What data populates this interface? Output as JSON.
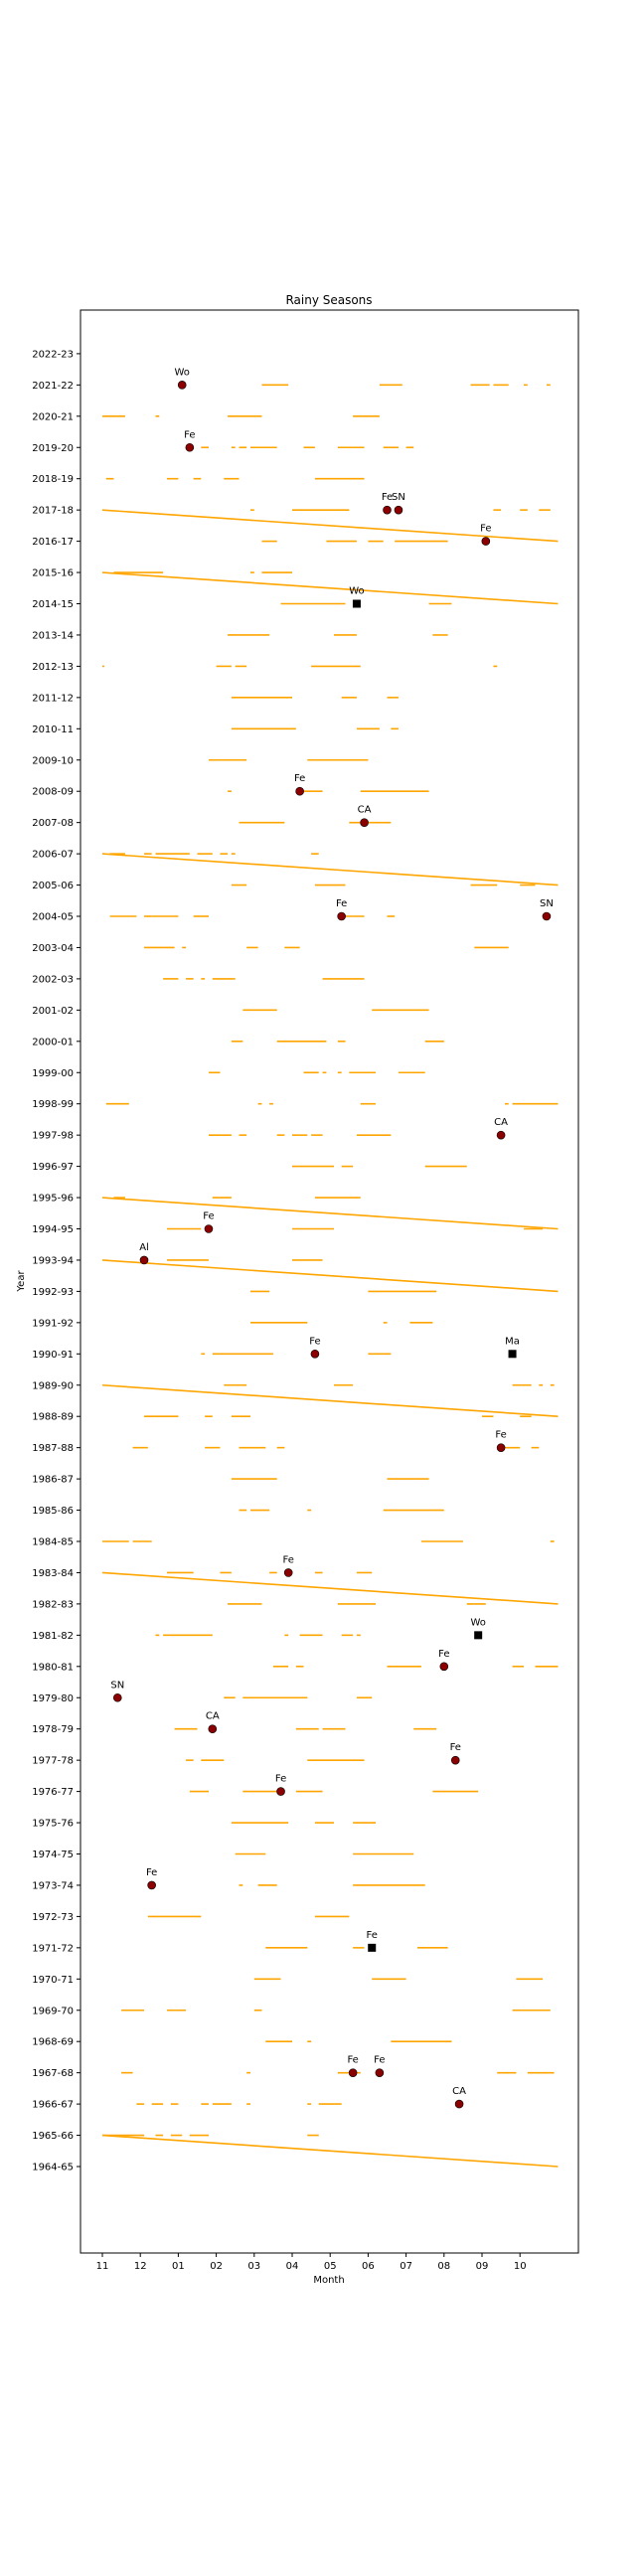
{
  "chart_data": {
    "type": "line",
    "title": "Rainy Seasons",
    "xlabel": "Month",
    "ylabel": "Year",
    "x_ticks": [
      "11",
      "12",
      "01",
      "02",
      "03",
      "04",
      "05",
      "06",
      "07",
      "08",
      "09",
      "10"
    ],
    "x_range": [
      0,
      12
    ],
    "grid": false,
    "colors": {
      "rain": "#FFA500",
      "event_marker": "#8B0000",
      "alt_marker": "#000000"
    },
    "years": [
      "1964-65",
      "1965-66",
      "1966-67",
      "1967-68",
      "1968-69",
      "1969-70",
      "1970-71",
      "1971-72",
      "1972-73",
      "1973-74",
      "1974-75",
      "1975-76",
      "1976-77",
      "1977-78",
      "1978-79",
      "1979-80",
      "1980-81",
      "1981-82",
      "1982-83",
      "1983-84",
      "1984-85",
      "1985-86",
      "1986-87",
      "1987-88",
      "1988-89",
      "1989-90",
      "1990-91",
      "1991-92",
      "1992-93",
      "1993-94",
      "1994-95",
      "1995-96",
      "1996-97",
      "1997-98",
      "1998-99",
      "1999-00",
      "2000-01",
      "2001-02",
      "2002-03",
      "2003-04",
      "2004-05",
      "2005-06",
      "2006-07",
      "2007-08",
      "2008-09",
      "2009-10",
      "2010-11",
      "2011-12",
      "2012-13",
      "2013-14",
      "2014-15",
      "2015-16",
      "2016-17",
      "2017-18",
      "2018-19",
      "2019-20",
      "2020-21",
      "2021-22",
      "2022-23"
    ],
    "rain_segments": [
      [
        "1965-66",
        0.0,
        1.1
      ],
      [
        "1965-66",
        1.4,
        1.6
      ],
      [
        "1965-66",
        1.8,
        2.1
      ],
      [
        "1965-66",
        2.3,
        2.8
      ],
      [
        "1965-66",
        5.4,
        5.7
      ],
      [
        "1966-67",
        0.9,
        1.1
      ],
      [
        "1966-67",
        1.3,
        1.6
      ],
      [
        "1966-67",
        1.8,
        2.0
      ],
      [
        "1966-67",
        2.6,
        2.8
      ],
      [
        "1966-67",
        2.9,
        3.4
      ],
      [
        "1966-67",
        3.8,
        3.9
      ],
      [
        "1966-67",
        5.4,
        5.5
      ],
      [
        "1966-67",
        5.7,
        6.3
      ],
      [
        "1967-68",
        0.5,
        0.8
      ],
      [
        "1967-68",
        3.8,
        3.9
      ],
      [
        "1967-68",
        6.2,
        6.8
      ],
      [
        "1967-68",
        10.4,
        10.9
      ],
      [
        "1967-68",
        11.2,
        11.9
      ],
      [
        "1968-69",
        4.3,
        5.0
      ],
      [
        "1968-69",
        5.4,
        5.5
      ],
      [
        "1968-69",
        7.6,
        9.2
      ],
      [
        "1969-70",
        0.5,
        1.1
      ],
      [
        "1969-70",
        1.7,
        2.2
      ],
      [
        "1969-70",
        4.0,
        4.2
      ],
      [
        "1969-70",
        10.8,
        11.8
      ],
      [
        "1970-71",
        4.0,
        4.7
      ],
      [
        "1970-71",
        7.1,
        8.0
      ],
      [
        "1970-71",
        10.9,
        11.6
      ],
      [
        "1971-72",
        4.3,
        5.4
      ],
      [
        "1971-72",
        6.6,
        6.9
      ],
      [
        "1971-72",
        8.3,
        9.1
      ],
      [
        "1972-73",
        1.2,
        2.6
      ],
      [
        "1972-73",
        5.6,
        6.5
      ],
      [
        "1973-74",
        3.6,
        3.7
      ],
      [
        "1973-74",
        4.1,
        4.6
      ],
      [
        "1973-74",
        6.6,
        8.5
      ],
      [
        "1974-75",
        3.5,
        4.3
      ],
      [
        "1974-75",
        6.6,
        8.2
      ],
      [
        "1975-76",
        3.4,
        4.9
      ],
      [
        "1975-76",
        5.6,
        6.1
      ],
      [
        "1975-76",
        6.6,
        7.2
      ],
      [
        "1976-77",
        2.3,
        2.8
      ],
      [
        "1976-77",
        3.7,
        4.6
      ],
      [
        "1976-77",
        5.1,
        5.8
      ],
      [
        "1976-77",
        8.7,
        9.9
      ],
      [
        "1977-78",
        2.2,
        2.4
      ],
      [
        "1977-78",
        2.6,
        3.2
      ],
      [
        "1977-78",
        5.4,
        6.9
      ],
      [
        "1978-79",
        1.9,
        2.5
      ],
      [
        "1978-79",
        5.1,
        5.7
      ],
      [
        "1978-79",
        5.8,
        6.4
      ],
      [
        "1978-79",
        8.2,
        8.8
      ],
      [
        "1979-80",
        3.2,
        3.5
      ],
      [
        "1979-80",
        3.7,
        5.4
      ],
      [
        "1979-80",
        6.7,
        7.1
      ],
      [
        "1980-81",
        4.5,
        4.9
      ],
      [
        "1980-81",
        5.1,
        5.3
      ],
      [
        "1980-81",
        7.5,
        8.4
      ],
      [
        "1980-81",
        10.8,
        11.1
      ],
      [
        "1980-81",
        11.4,
        12.0
      ],
      [
        "1981-82",
        1.4,
        1.5
      ],
      [
        "1981-82",
        1.6,
        2.9
      ],
      [
        "1981-82",
        4.8,
        4.9
      ],
      [
        "1981-82",
        5.2,
        5.8
      ],
      [
        "1981-82",
        6.3,
        6.6
      ],
      [
        "1981-82",
        6.7,
        6.8
      ],
      [
        "1982-83",
        3.3,
        4.2
      ],
      [
        "1982-83",
        6.2,
        7.2
      ],
      [
        "1982-83",
        9.6,
        10.1
      ],
      [
        "1983-84",
        1.7,
        2.4
      ],
      [
        "1983-84",
        3.1,
        3.4
      ],
      [
        "1983-84",
        4.4,
        4.6
      ],
      [
        "1983-84",
        5.6,
        5.8
      ],
      [
        "1983-84",
        6.7,
        7.1
      ],
      [
        "1984-85",
        0.0,
        0.7
      ],
      [
        "1984-85",
        0.8,
        1.3
      ],
      [
        "1984-85",
        8.4,
        9.5
      ],
      [
        "1984-85",
        11.8,
        11.9
      ],
      [
        "1985-86",
        3.6,
        3.8
      ],
      [
        "1985-86",
        3.9,
        4.4
      ],
      [
        "1985-86",
        5.4,
        5.5
      ],
      [
        "1985-86",
        7.4,
        9.0
      ],
      [
        "1986-87",
        3.4,
        4.6
      ],
      [
        "1986-87",
        7.5,
        8.6
      ],
      [
        "1987-88",
        0.8,
        1.2
      ],
      [
        "1987-88",
        2.7,
        3.1
      ],
      [
        "1987-88",
        3.6,
        4.3
      ],
      [
        "1987-88",
        4.6,
        4.8
      ],
      [
        "1987-88",
        10.5,
        11.0
      ],
      [
        "1987-88",
        11.3,
        11.5
      ],
      [
        "1988-89",
        1.1,
        2.0
      ],
      [
        "1988-89",
        2.7,
        2.9
      ],
      [
        "1988-89",
        3.4,
        3.9
      ],
      [
        "1988-89",
        10.0,
        10.3
      ],
      [
        "1988-89",
        11.0,
        11.3
      ],
      [
        "1989-90",
        3.2,
        3.8
      ],
      [
        "1989-90",
        6.1,
        6.6
      ],
      [
        "1989-90",
        10.8,
        11.3
      ],
      [
        "1989-90",
        11.5,
        11.6
      ],
      [
        "1989-90",
        11.8,
        11.9
      ],
      [
        "1990-91",
        2.6,
        2.7
      ],
      [
        "1990-91",
        2.9,
        4.5
      ],
      [
        "1990-91",
        7.0,
        7.6
      ],
      [
        "1991-92",
        3.9,
        5.4
      ],
      [
        "1991-92",
        7.4,
        7.5
      ],
      [
        "1991-92",
        8.1,
        8.7
      ],
      [
        "1992-93",
        3.9,
        4.4
      ],
      [
        "1992-93",
        7.0,
        8.8
      ],
      [
        "1993-94",
        1.7,
        2.8
      ],
      [
        "1993-94",
        5.0,
        5.8
      ],
      [
        "1994-95",
        1.7,
        2.6
      ],
      [
        "1994-95",
        5.0,
        6.1
      ],
      [
        "1994-95",
        11.1,
        11.6
      ],
      [
        "1995-96",
        0.3,
        0.6
      ],
      [
        "1995-96",
        2.9,
        3.4
      ],
      [
        "1995-96",
        5.6,
        6.8
      ],
      [
        "1996-97",
        5.0,
        6.1
      ],
      [
        "1996-97",
        6.3,
        6.6
      ],
      [
        "1996-97",
        8.5,
        9.6
      ],
      [
        "1997-98",
        2.8,
        3.4
      ],
      [
        "1997-98",
        3.6,
        3.8
      ],
      [
        "1997-98",
        4.6,
        4.8
      ],
      [
        "1997-98",
        5.0,
        5.4
      ],
      [
        "1997-98",
        5.5,
        5.8
      ],
      [
        "1997-98",
        6.7,
        7.6
      ],
      [
        "1998-99",
        0.1,
        0.7
      ],
      [
        "1998-99",
        4.1,
        4.2
      ],
      [
        "1998-99",
        4.4,
        4.5
      ],
      [
        "1998-99",
        6.8,
        7.2
      ],
      [
        "1998-99",
        10.6,
        10.7
      ],
      [
        "1998-99",
        10.8,
        12.0
      ],
      [
        "1999-00",
        2.8,
        3.1
      ],
      [
        "1999-00",
        5.3,
        5.7
      ],
      [
        "1999-00",
        5.8,
        5.9
      ],
      [
        "1999-00",
        6.2,
        6.3
      ],
      [
        "1999-00",
        6.5,
        7.2
      ],
      [
        "1999-00",
        7.8,
        8.5
      ],
      [
        "2000-01",
        3.4,
        3.7
      ],
      [
        "2000-01",
        4.6,
        5.9
      ],
      [
        "2000-01",
        6.2,
        6.4
      ],
      [
        "2000-01",
        8.5,
        9.0
      ],
      [
        "2001-02",
        3.7,
        4.6
      ],
      [
        "2001-02",
        7.1,
        8.6
      ],
      [
        "2002-03",
        1.6,
        2.0
      ],
      [
        "2002-03",
        2.2,
        2.4
      ],
      [
        "2002-03",
        2.6,
        2.7
      ],
      [
        "2002-03",
        2.9,
        3.5
      ],
      [
        "2002-03",
        5.8,
        6.9
      ],
      [
        "2003-04",
        1.1,
        1.9
      ],
      [
        "2003-04",
        2.1,
        2.2
      ],
      [
        "2003-04",
        3.8,
        4.1
      ],
      [
        "2003-04",
        4.8,
        5.2
      ],
      [
        "2003-04",
        9.8,
        10.7
      ],
      [
        "2004-05",
        0.2,
        0.9
      ],
      [
        "2004-05",
        1.1,
        1.3
      ],
      [
        "2004-05",
        1.3,
        2.0
      ],
      [
        "2004-05",
        2.4,
        2.8
      ],
      [
        "2004-05",
        6.4,
        6.9
      ],
      [
        "2004-05",
        7.5,
        7.7
      ],
      [
        "2005-06",
        3.4,
        3.8
      ],
      [
        "2005-06",
        5.6,
        6.4
      ],
      [
        "2005-06",
        9.7,
        10.4
      ],
      [
        "2005-06",
        11.0,
        11.4
      ],
      [
        "2006-07",
        0.2,
        0.6
      ],
      [
        "2006-07",
        1.1,
        1.3
      ],
      [
        "2006-07",
        1.4,
        2.3
      ],
      [
        "2006-07",
        2.5,
        2.9
      ],
      [
        "2006-07",
        3.1,
        3.3
      ],
      [
        "2006-07",
        3.4,
        3.5
      ],
      [
        "2006-07",
        5.5,
        5.7
      ],
      [
        "2007-08",
        3.6,
        4.8
      ],
      [
        "2007-08",
        6.5,
        7.6
      ],
      [
        "2008-09",
        3.3,
        3.4
      ],
      [
        "2008-09",
        5.3,
        5.8
      ],
      [
        "2008-09",
        6.8,
        8.6
      ],
      [
        "2009-10",
        2.8,
        3.8
      ],
      [
        "2009-10",
        5.4,
        7.0
      ],
      [
        "2010-11",
        3.4,
        5.1
      ],
      [
        "2010-11",
        6.7,
        7.3
      ],
      [
        "2010-11",
        7.6,
        7.8
      ],
      [
        "2011-12",
        3.4,
        5.0
      ],
      [
        "2011-12",
        6.3,
        6.7
      ],
      [
        "2011-12",
        7.5,
        7.8
      ],
      [
        "2012-13",
        0.0,
        0.05
      ],
      [
        "2012-13",
        3.0,
        3.4
      ],
      [
        "2012-13",
        3.5,
        3.8
      ],
      [
        "2012-13",
        5.5,
        6.8
      ],
      [
        "2012-13",
        10.3,
        10.4
      ],
      [
        "2013-14",
        3.3,
        4.4
      ],
      [
        "2013-14",
        6.1,
        6.7
      ],
      [
        "2013-14",
        8.7,
        9.1
      ],
      [
        "2014-15",
        4.7,
        6.4
      ],
      [
        "2014-15",
        8.6,
        9.2
      ],
      [
        "2015-16",
        0.3,
        1.6
      ],
      [
        "2015-16",
        3.9,
        4.0
      ],
      [
        "2015-16",
        4.2,
        5.0
      ],
      [
        "2016-17",
        4.2,
        4.6
      ],
      [
        "2016-17",
        5.9,
        6.7
      ],
      [
        "2016-17",
        7.0,
        7.4
      ],
      [
        "2016-17",
        7.7,
        9.1
      ],
      [
        "2017-18",
        3.9,
        4.0
      ],
      [
        "2017-18",
        5.0,
        6.5
      ],
      [
        "2017-18",
        10.3,
        10.5
      ],
      [
        "2017-18",
        11.0,
        11.2
      ],
      [
        "2017-18",
        11.5,
        11.8
      ],
      [
        "2018-19",
        0.1,
        0.3
      ],
      [
        "2018-19",
        1.7,
        2.0
      ],
      [
        "2018-19",
        2.4,
        2.6
      ],
      [
        "2018-19",
        3.2,
        3.6
      ],
      [
        "2018-19",
        5.6,
        6.9
      ],
      [
        "2019-20",
        2.6,
        2.8
      ],
      [
        "2019-20",
        3.4,
        3.5
      ],
      [
        "2019-20",
        3.6,
        3.8
      ],
      [
        "2019-20",
        3.9,
        4.6
      ],
      [
        "2019-20",
        5.3,
        5.6
      ],
      [
        "2019-20",
        6.2,
        6.9
      ],
      [
        "2019-20",
        7.4,
        7.8
      ],
      [
        "2019-20",
        8.0,
        8.2
      ],
      [
        "2020-21",
        0.0,
        0.6
      ],
      [
        "2020-21",
        1.4,
        1.5
      ],
      [
        "2020-21",
        3.3,
        4.2
      ],
      [
        "2020-21",
        6.6,
        7.3
      ],
      [
        "2021-22",
        4.2,
        4.9
      ],
      [
        "2021-22",
        7.3,
        7.9
      ],
      [
        "2021-22",
        9.7,
        10.2
      ],
      [
        "2021-22",
        10.3,
        10.7
      ],
      [
        "2021-22",
        11.1,
        11.2
      ],
      [
        "2021-22",
        11.7,
        11.8
      ]
    ],
    "trend_lines": [
      {
        "from": [
          "1965-66",
          0.0
        ],
        "to": [
          "1964-65",
          12.0
        ]
      },
      {
        "from": [
          "1983-84",
          0.0
        ],
        "to": [
          "1982-83",
          12.0
        ]
      },
      {
        "from": [
          "1989-90",
          0.0
        ],
        "to": [
          "1988-89",
          12.0
        ]
      },
      {
        "from": [
          "1993-94",
          0.0
        ],
        "to": [
          "1992-93",
          12.0
        ]
      },
      {
        "from": [
          "1995-96",
          0.0
        ],
        "to": [
          "1994-95",
          12.0
        ]
      },
      {
        "from": [
          "2006-07",
          0.0
        ],
        "to": [
          "2005-06",
          12.0
        ]
      },
      {
        "from": [
          "2015-16",
          0.0
        ],
        "to": [
          "2014-15",
          12.0
        ]
      },
      {
        "from": [
          "2017-18",
          0.0
        ],
        "to": [
          "2016-17",
          12.0
        ]
      }
    ],
    "events": [
      {
        "year": "1966-67",
        "x": 9.4,
        "label": "CA",
        "marker": "circle"
      },
      {
        "year": "1967-68",
        "x": 6.6,
        "label": "Fe",
        "marker": "circle"
      },
      {
        "year": "1967-68",
        "x": 7.3,
        "label": "Fe",
        "marker": "circle"
      },
      {
        "year": "1971-72",
        "x": 7.1,
        "label": "Fe",
        "marker": "square"
      },
      {
        "year": "1973-74",
        "x": 1.3,
        "label": "Fe",
        "marker": "circle"
      },
      {
        "year": "1976-77",
        "x": 4.7,
        "label": "Fe",
        "marker": "circle"
      },
      {
        "year": "1977-78",
        "x": 9.3,
        "label": "Fe",
        "marker": "circle"
      },
      {
        "year": "1978-79",
        "x": 2.9,
        "label": "CA",
        "marker": "circle"
      },
      {
        "year": "1979-80",
        "x": 0.4,
        "label": "SN",
        "marker": "circle"
      },
      {
        "year": "1980-81",
        "x": 9.0,
        "label": "Fe",
        "marker": "circle"
      },
      {
        "year": "1981-82",
        "x": 9.9,
        "label": "Wo",
        "marker": "square"
      },
      {
        "year": "1983-84",
        "x": 4.9,
        "label": "Fe",
        "marker": "circle"
      },
      {
        "year": "1987-88",
        "x": 10.5,
        "label": "Fe",
        "marker": "circle"
      },
      {
        "year": "1990-91",
        "x": 5.6,
        "label": "Fe",
        "marker": "circle"
      },
      {
        "year": "1990-91",
        "x": 10.8,
        "label": "Ma",
        "marker": "square"
      },
      {
        "year": "1993-94",
        "x": 1.1,
        "label": "Al",
        "marker": "circle"
      },
      {
        "year": "1994-95",
        "x": 2.8,
        "label": "Fe",
        "marker": "circle"
      },
      {
        "year": "1997-98",
        "x": 10.5,
        "label": "CA",
        "marker": "circle"
      },
      {
        "year": "2004-05",
        "x": 6.3,
        "label": "Fe",
        "marker": "circle"
      },
      {
        "year": "2004-05",
        "x": 11.7,
        "label": "SN",
        "marker": "circle"
      },
      {
        "year": "2007-08",
        "x": 6.9,
        "label": "CA",
        "marker": "circle"
      },
      {
        "year": "2008-09",
        "x": 5.2,
        "label": "Fe",
        "marker": "circle"
      },
      {
        "year": "2014-15",
        "x": 6.7,
        "label": "Wo",
        "marker": "square"
      },
      {
        "year": "2016-17",
        "x": 10.1,
        "label": "Fe",
        "marker": "circle"
      },
      {
        "year": "2017-18",
        "x": 7.5,
        "label": "Fe",
        "marker": "circle"
      },
      {
        "year": "2017-18",
        "x": 7.8,
        "label": "SN",
        "marker": "circle"
      },
      {
        "year": "2019-20",
        "x": 2.3,
        "label": "Fe",
        "marker": "circle"
      },
      {
        "year": "2021-22",
        "x": 2.1,
        "label": "Wo",
        "marker": "circle"
      }
    ]
  }
}
